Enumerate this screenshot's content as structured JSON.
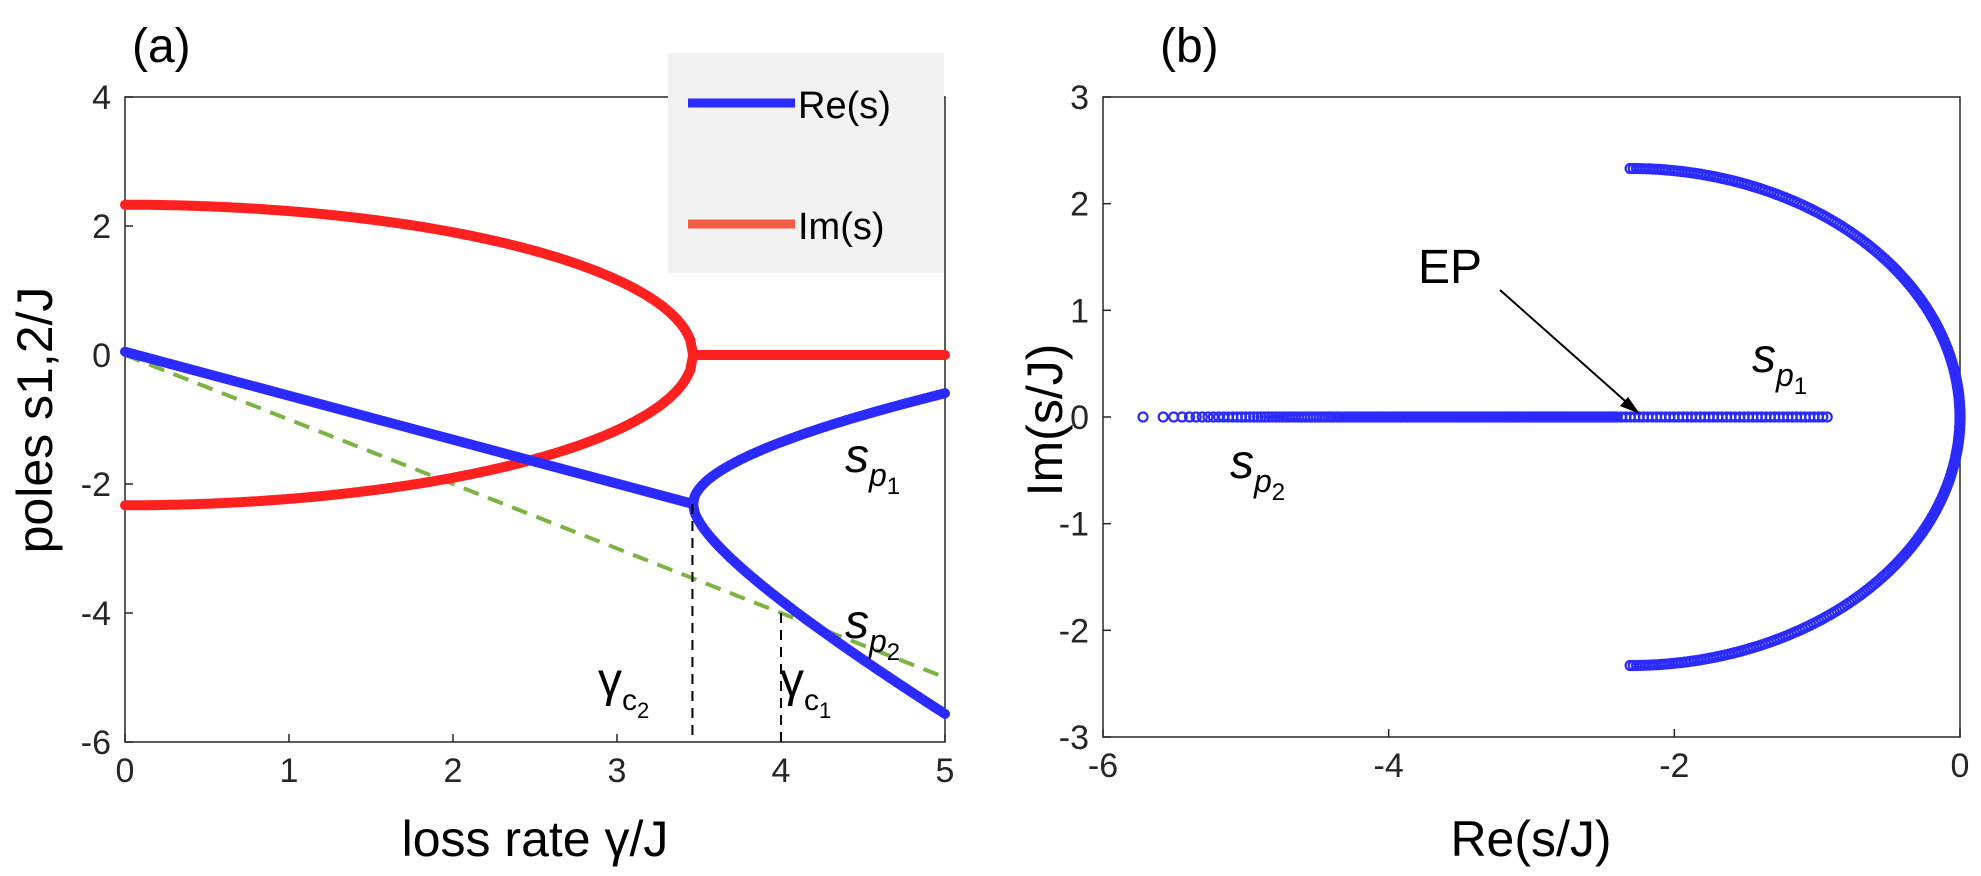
{
  "chart_data": [
    {
      "panel_label": "(a)",
      "type": "line",
      "xlabel": "loss rate γ/J",
      "ylabel": "poles s1,2/J",
      "xlim": [
        0,
        5
      ],
      "ylim": [
        -6,
        4
      ],
      "xticks": [
        "0",
        "1",
        "2",
        "3",
        "4",
        "5"
      ],
      "yticks": [
        "4",
        "2",
        "0",
        "-2",
        "-4",
        "-6"
      ],
      "grid": false,
      "legend": {
        "placement": "top-right",
        "entries": [
          {
            "label": "Re(s)",
            "color": "#2b2bff"
          },
          {
            "label": "Im(s)",
            "color": "#f25c42"
          }
        ]
      },
      "critical_points": [
        {
          "label": "γc2",
          "x": 3.46
        },
        {
          "label": "γc1",
          "x": 4.0
        }
      ],
      "annotations": [
        {
          "label": "sp1",
          "x": 4.4,
          "y": -1.4
        },
        {
          "label": "sp2",
          "x": 4.4,
          "y": -4.6
        }
      ],
      "series": [
        {
          "label": "Re(s) branch",
          "color": "#2b2bff"
        },
        {
          "label": "Im(s) branch",
          "color": "#ff2020"
        },
        {
          "label": "dashed line",
          "color": "#7cb342"
        }
      ]
    },
    {
      "panel_label": "(b)",
      "type": "scatter",
      "xlabel": "Re(s/J)",
      "ylabel": "Im(s/J)",
      "xlim": [
        -6,
        0
      ],
      "ylim": [
        -3,
        3
      ],
      "xticks": [
        "-6",
        "-4",
        "-2",
        "0"
      ],
      "yticks": [
        "3",
        "2",
        "1",
        "0",
        "-1",
        "-2",
        "-3"
      ],
      "grid": false,
      "color": "#2b2bff",
      "annotations": [
        {
          "label": "EP",
          "x": -2.31,
          "y": 0
        },
        {
          "label": "sp1",
          "x": -1.5,
          "y": 0.45
        },
        {
          "label": "sp2",
          "x": -5.2,
          "y": -0.45
        }
      ]
    }
  ]
}
